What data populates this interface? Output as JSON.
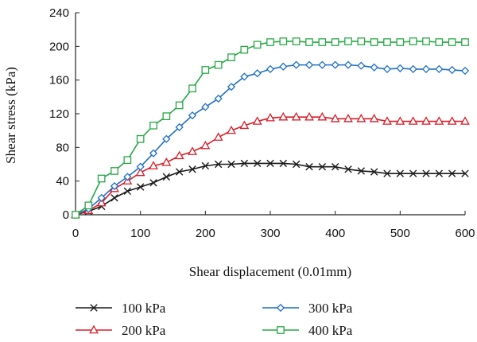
{
  "chart_data": {
    "type": "line",
    "title": "",
    "xlabel": "Shear displacement (0.01mm)",
    "ylabel": "Shear stress (kPa)",
    "xlim": [
      0,
      600
    ],
    "ylim": [
      0,
      240
    ],
    "xticks": [
      0,
      100,
      200,
      300,
      400,
      500,
      600
    ],
    "yticks": [
      0,
      40,
      80,
      120,
      160,
      200,
      240
    ],
    "grid": false,
    "legend_position": "bottom",
    "series": [
      {
        "name": "100 kPa",
        "color": "#1a1a1a",
        "marker": "x",
        "x": [
          0,
          20,
          40,
          60,
          80,
          100,
          120,
          140,
          160,
          180,
          200,
          220,
          240,
          260,
          280,
          300,
          320,
          340,
          360,
          380,
          400,
          420,
          440,
          460,
          480,
          500,
          520,
          540,
          560,
          580,
          600
        ],
        "values": [
          0,
          4,
          10,
          20,
          28,
          33,
          38,
          45,
          51,
          54,
          58,
          60,
          60,
          61,
          61,
          61,
          61,
          60,
          57,
          57,
          57,
          54,
          52,
          51,
          49,
          49,
          49,
          49,
          49,
          49,
          49
        ]
      },
      {
        "name": "200 kPa",
        "color": "#d81e2a",
        "marker": "triangle",
        "x": [
          0,
          20,
          40,
          60,
          80,
          100,
          120,
          140,
          160,
          180,
          200,
          220,
          240,
          260,
          280,
          300,
          320,
          340,
          360,
          380,
          400,
          420,
          440,
          460,
          480,
          500,
          520,
          540,
          560,
          580,
          600
        ],
        "values": [
          0,
          5,
          14,
          31,
          40,
          50,
          58,
          62,
          70,
          75,
          82,
          92,
          100,
          106,
          111,
          115,
          116,
          116,
          116,
          116,
          114,
          114,
          114,
          114,
          111,
          111,
          111,
          111,
          111,
          111,
          111
        ]
      },
      {
        "name": "300 kPa",
        "color": "#1f6fc4",
        "marker": "diamond",
        "x": [
          0,
          20,
          40,
          60,
          80,
          100,
          120,
          140,
          160,
          180,
          200,
          220,
          240,
          260,
          280,
          300,
          320,
          340,
          360,
          380,
          400,
          420,
          440,
          460,
          480,
          500,
          520,
          540,
          560,
          580,
          600
        ],
        "values": [
          0,
          7,
          20,
          34,
          45,
          57,
          73,
          90,
          104,
          118,
          128,
          138,
          152,
          164,
          168,
          173,
          176,
          178,
          178,
          178,
          178,
          178,
          177,
          175,
          173,
          174,
          173,
          173,
          173,
          172,
          171
        ]
      },
      {
        "name": "400 kPa",
        "color": "#27a844",
        "marker": "square",
        "x": [
          0,
          20,
          40,
          60,
          80,
          100,
          120,
          140,
          160,
          180,
          200,
          220,
          240,
          260,
          280,
          300,
          320,
          340,
          360,
          380,
          400,
          420,
          440,
          460,
          480,
          500,
          520,
          540,
          560,
          580,
          600
        ],
        "values": [
          0,
          11,
          43,
          52,
          65,
          90,
          106,
          117,
          130,
          150,
          172,
          178,
          187,
          196,
          202,
          205,
          206,
          206,
          205,
          205,
          205,
          206,
          206,
          205,
          205,
          205,
          206,
          206,
          205,
          205,
          205
        ]
      }
    ]
  }
}
